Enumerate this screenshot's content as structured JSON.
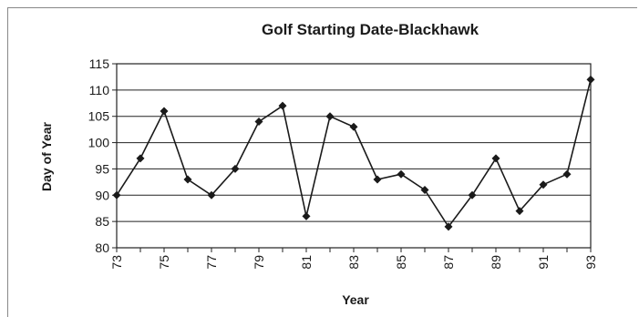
{
  "chart_data": {
    "type": "line",
    "title": "Golf Starting Date-Blackhawk",
    "xlabel": "Year",
    "ylabel": "Day of Year",
    "x": [
      73,
      74,
      75,
      76,
      77,
      78,
      79,
      80,
      81,
      82,
      83,
      84,
      85,
      86,
      87,
      88,
      89,
      90,
      91,
      92,
      93
    ],
    "values": [
      90,
      97,
      106,
      93,
      90,
      95,
      104,
      107,
      86,
      105,
      103,
      93,
      94,
      91,
      84,
      90,
      97,
      87,
      92,
      94,
      112
    ],
    "x_tick_labels": [
      "73",
      "75",
      "77",
      "79",
      "81",
      "83",
      "85",
      "87",
      "89",
      "91",
      "93"
    ],
    "y_tick_labels": [
      "80",
      "85",
      "90",
      "95",
      "100",
      "105",
      "110",
      "115"
    ],
    "xlim": [
      73,
      93
    ],
    "ylim": [
      80,
      115
    ],
    "grid": "horizontal",
    "legend": "none",
    "colors": {
      "line": "#1a1a1a",
      "grid": "#222222",
      "frame": "#222222"
    }
  }
}
